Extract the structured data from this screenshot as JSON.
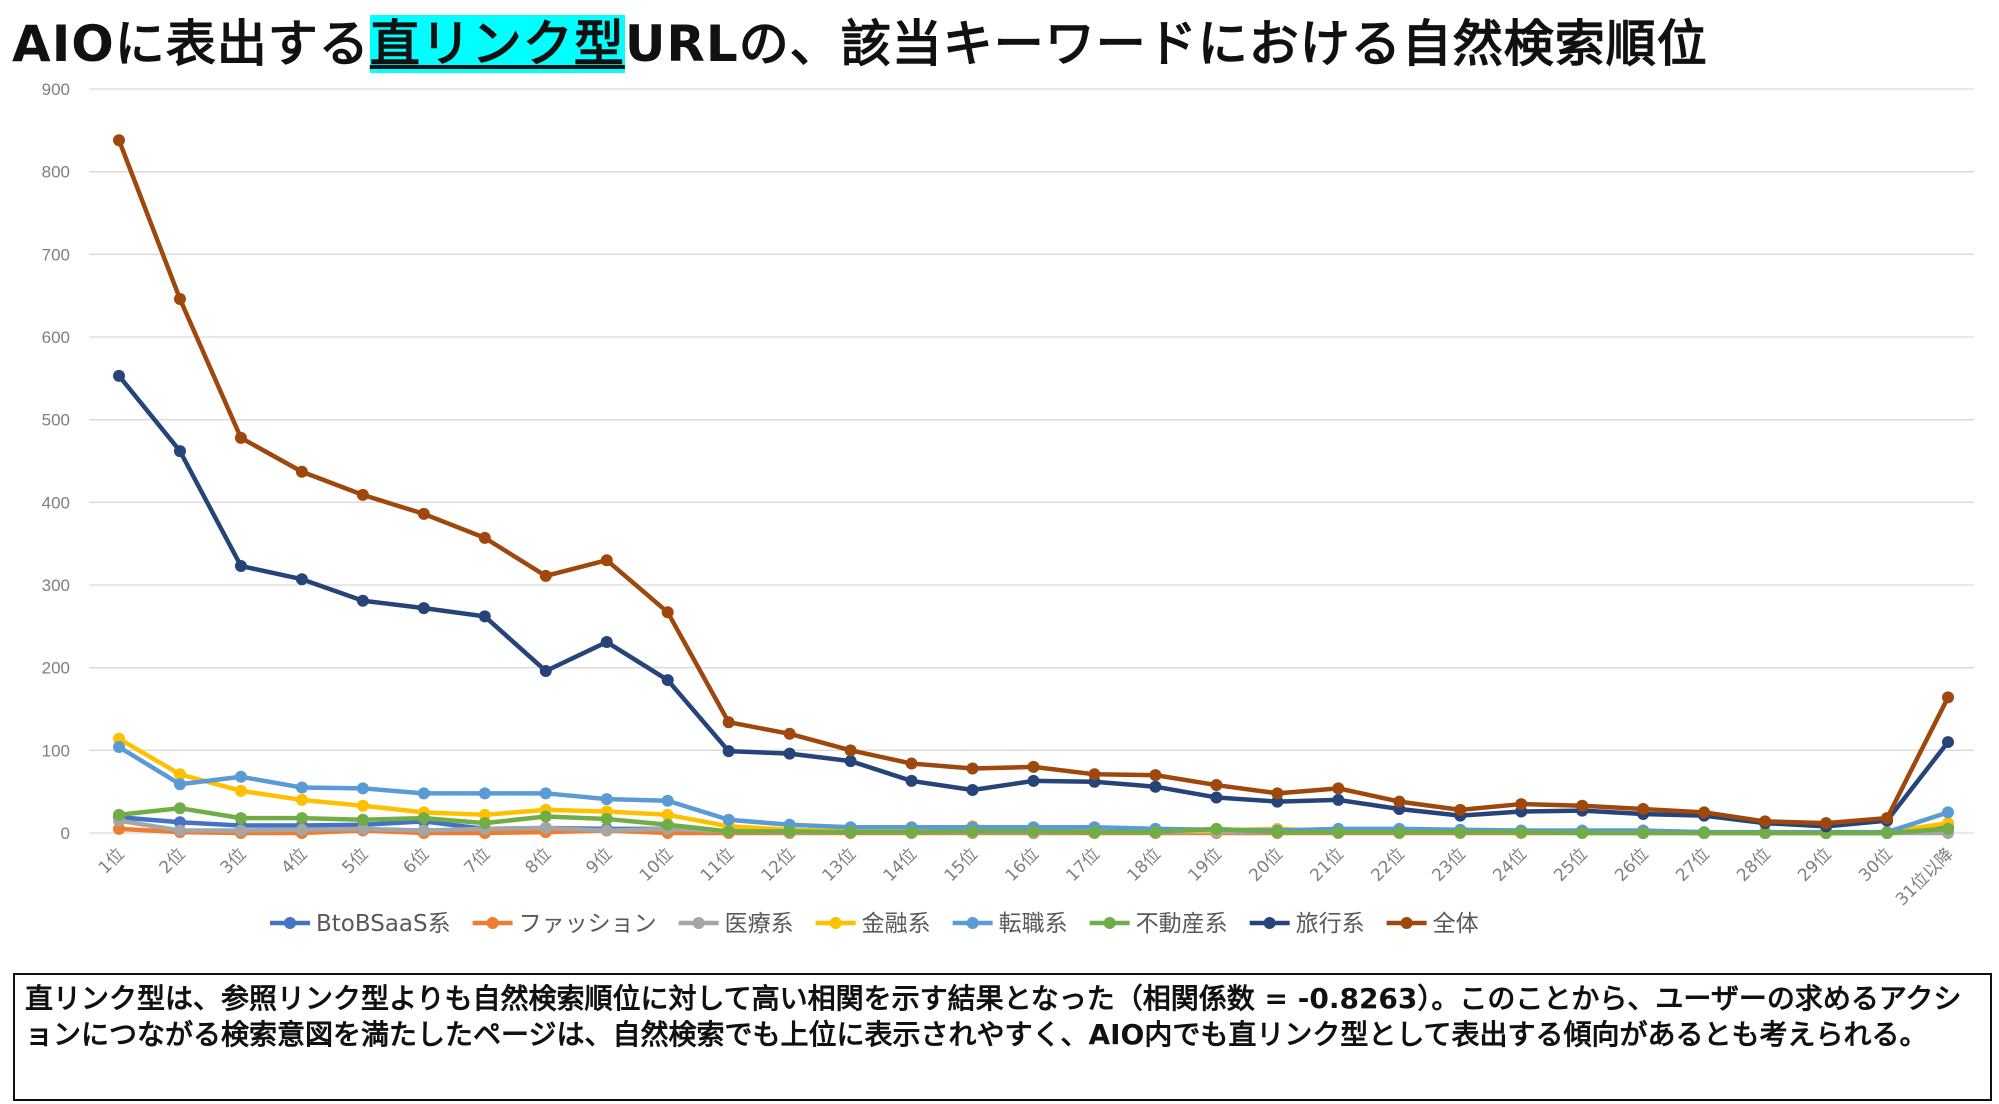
{
  "title": {
    "prefix": "AIOに表出する",
    "highlight": "直リンク型",
    "suffix": "URLの、該当キーワードにおける自然検索順位"
  },
  "colors": {
    "title_highlight": "#00ffff"
  },
  "chart_data": {
    "type": "line",
    "title": "",
    "xlabel": "",
    "ylabel": "",
    "ylim": [
      0,
      900
    ],
    "yticks": [
      0,
      100,
      200,
      300,
      400,
      500,
      600,
      700,
      800,
      900
    ],
    "grid": true,
    "legend_position": "bottom",
    "categories": [
      "1位",
      "2位",
      "3位",
      "4位",
      "5位",
      "6位",
      "7位",
      "8位",
      "9位",
      "10位",
      "11位",
      "12位",
      "13位",
      "14位",
      "15位",
      "16位",
      "17位",
      "18位",
      "19位",
      "20位",
      "21位",
      "22位",
      "23位",
      "24位",
      "25位",
      "26位",
      "27位",
      "28位",
      "29位",
      "30位",
      "31位以降"
    ],
    "series": [
      {
        "name": "BtoBSaaS系",
        "color": "#4472c4",
        "values": [
          19,
          13,
          9,
          9,
          10,
          14,
          5,
          6,
          5,
          5,
          2,
          2,
          1,
          1,
          1,
          1,
          1,
          1,
          1,
          1,
          1,
          1,
          1,
          1,
          1,
          1,
          0,
          0,
          0,
          0,
          8
        ]
      },
      {
        "name": "ファッション",
        "color": "#ed7d31",
        "values": [
          5,
          1,
          0,
          0,
          3,
          0,
          0,
          1,
          3,
          0,
          0,
          0,
          0,
          0,
          0,
          0,
          0,
          0,
          0,
          0,
          0,
          0,
          0,
          0,
          0,
          0,
          0,
          0,
          0,
          0,
          1
        ]
      },
      {
        "name": "医療系",
        "color": "#a5a5a5",
        "values": [
          15,
          3,
          3,
          4,
          5,
          3,
          5,
          6,
          3,
          5,
          2,
          1,
          1,
          1,
          1,
          1,
          1,
          1,
          1,
          1,
          1,
          1,
          1,
          1,
          1,
          1,
          0,
          0,
          0,
          0,
          0
        ]
      },
      {
        "name": "金融系",
        "color": "#ffc000",
        "values": [
          114,
          71,
          51,
          40,
          33,
          25,
          22,
          28,
          26,
          22,
          8,
          4,
          2,
          2,
          8,
          3,
          2,
          2,
          3,
          5,
          2,
          2,
          1,
          1,
          1,
          1,
          0,
          0,
          0,
          1,
          12
        ]
      },
      {
        "name": "転職系",
        "color": "#5b9bd5",
        "values": [
          104,
          59,
          68,
          55,
          54,
          48,
          48,
          48,
          41,
          39,
          16,
          10,
          7,
          7,
          7,
          7,
          7,
          5,
          4,
          3,
          5,
          5,
          4,
          3,
          3,
          3,
          1,
          1,
          1,
          1,
          25
        ]
      },
      {
        "name": "不動産系",
        "color": "#70ad47",
        "values": [
          22,
          30,
          18,
          18,
          16,
          18,
          12,
          20,
          17,
          10,
          2,
          2,
          1,
          1,
          2,
          2,
          1,
          1,
          5,
          1,
          1,
          1,
          1,
          1,
          0,
          0,
          0,
          0,
          0,
          0,
          5
        ]
      },
      {
        "name": "旅行系",
        "color": "#264478",
        "values": [
          553,
          462,
          323,
          307,
          281,
          272,
          262,
          196,
          231,
          185,
          99,
          96,
          87,
          63,
          52,
          63,
          62,
          56,
          43,
          38,
          40,
          29,
          21,
          26,
          27,
          23,
          21,
          12,
          8,
          15,
          110
        ]
      },
      {
        "name": "全体",
        "color": "#9e480e",
        "values": [
          838,
          646,
          478,
          437,
          409,
          386,
          357,
          311,
          330,
          267,
          134,
          120,
          100,
          84,
          78,
          80,
          71,
          70,
          58,
          48,
          54,
          38,
          28,
          35,
          33,
          29,
          25,
          14,
          12,
          18,
          164
        ]
      }
    ]
  },
  "note": "直リンク型は、参照リンク型よりも自然検索順位に対して高い相関を示す結果となった（相関係数 = -0.8263）。このことから、ユーザーの求めるアクションにつながる検索意図を満たしたページは、自然検索でも上位に表示されやすく、AIO内でも直リンク型として表出する傾向があるとも考えられる。"
}
